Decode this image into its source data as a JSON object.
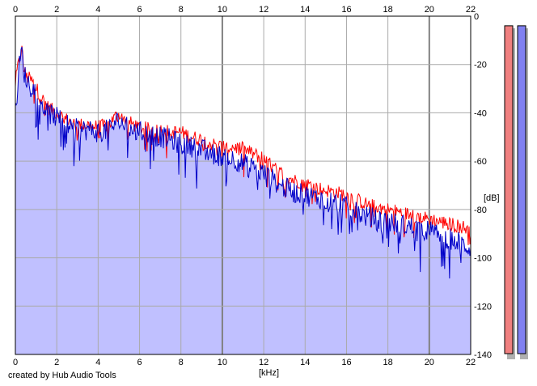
{
  "app": {
    "credit": "created by Hub Audio Tools"
  },
  "chart_data": {
    "type": "line",
    "xlabel": "[kHz]",
    "ylabel": "[dB]",
    "xlim": [
      0,
      22
    ],
    "ylim": [
      -140,
      0
    ],
    "x_ticks": [
      0,
      2,
      4,
      6,
      8,
      10,
      12,
      14,
      16,
      18,
      20,
      22
    ],
    "y_ticks": [
      0,
      -20,
      -40,
      -60,
      -80,
      -100,
      -120,
      -140
    ],
    "grid": true,
    "colors": {
      "area_fill": "#c0c0ff",
      "red_series": "#ff0000",
      "blue_series": "#0000c8",
      "grid": "#aaaaaa",
      "level_red": "#f08080",
      "level_blue": "#8080f0"
    },
    "series": [
      {
        "x": [
          0,
          0.1,
          0.2,
          0.3,
          0.4,
          0.5,
          0.7,
          0.9,
          1.2,
          1.6,
          2,
          2.5,
          3,
          3.5,
          4,
          4.5,
          5,
          5.5,
          6,
          6.5,
          7,
          7.5,
          8,
          8.5,
          9,
          9.5,
          10,
          10.5,
          11,
          11.5,
          12,
          12.5,
          13,
          13.5,
          14,
          14.5,
          15,
          15.5,
          16,
          16.5,
          17,
          17.5,
          18,
          18.5,
          19,
          19.5,
          20,
          20.5,
          21,
          21.5,
          22
        ],
        "values": [
          -28,
          -22,
          -18,
          -13,
          -20,
          -25,
          -26,
          -28,
          -33,
          -38,
          -40,
          -43,
          -45,
          -45,
          -46,
          -45,
          -40,
          -44,
          -46,
          -47,
          -47,
          -48,
          -48,
          -50,
          -51,
          -53,
          -54,
          -54,
          -55,
          -57,
          -59,
          -63,
          -66,
          -68,
          -69,
          -71,
          -72,
          -73,
          -74,
          -76,
          -78,
          -79,
          -80,
          -81,
          -82,
          -83,
          -84,
          -85,
          -86,
          -87,
          -88
        ]
      },
      {
        "x": [
          0,
          0.1,
          0.2,
          0.3,
          0.4,
          0.5,
          0.7,
          0.9,
          1.2,
          1.6,
          2,
          2.5,
          3,
          3.5,
          4,
          4.5,
          5,
          5.5,
          6,
          6.5,
          7,
          7.5,
          8,
          8.5,
          9,
          9.5,
          10,
          10.5,
          11,
          11.5,
          12,
          12.5,
          13,
          13.5,
          14,
          14.5,
          15,
          15.5,
          16,
          16.5,
          17,
          17.5,
          18,
          18.5,
          19,
          19.5,
          20,
          20.5,
          21,
          21.5,
          22
        ],
        "values": [
          -40,
          -30,
          -20,
          -14,
          -22,
          -26,
          -28,
          -30,
          -35,
          -40,
          -42,
          -45,
          -47,
          -47,
          -48,
          -47,
          -43,
          -47,
          -48,
          -49,
          -50,
          -51,
          -53,
          -54,
          -55,
          -57,
          -58,
          -59,
          -61,
          -63,
          -65,
          -68,
          -71,
          -73,
          -74,
          -75,
          -76,
          -77,
          -79,
          -81,
          -83,
          -84,
          -85,
          -86,
          -87,
          -88,
          -89,
          -91,
          -92,
          -94,
          -96
        ]
      }
    ],
    "level_meters": [
      {
        "value_db": -2
      },
      {
        "value_db": -2
      }
    ]
  }
}
